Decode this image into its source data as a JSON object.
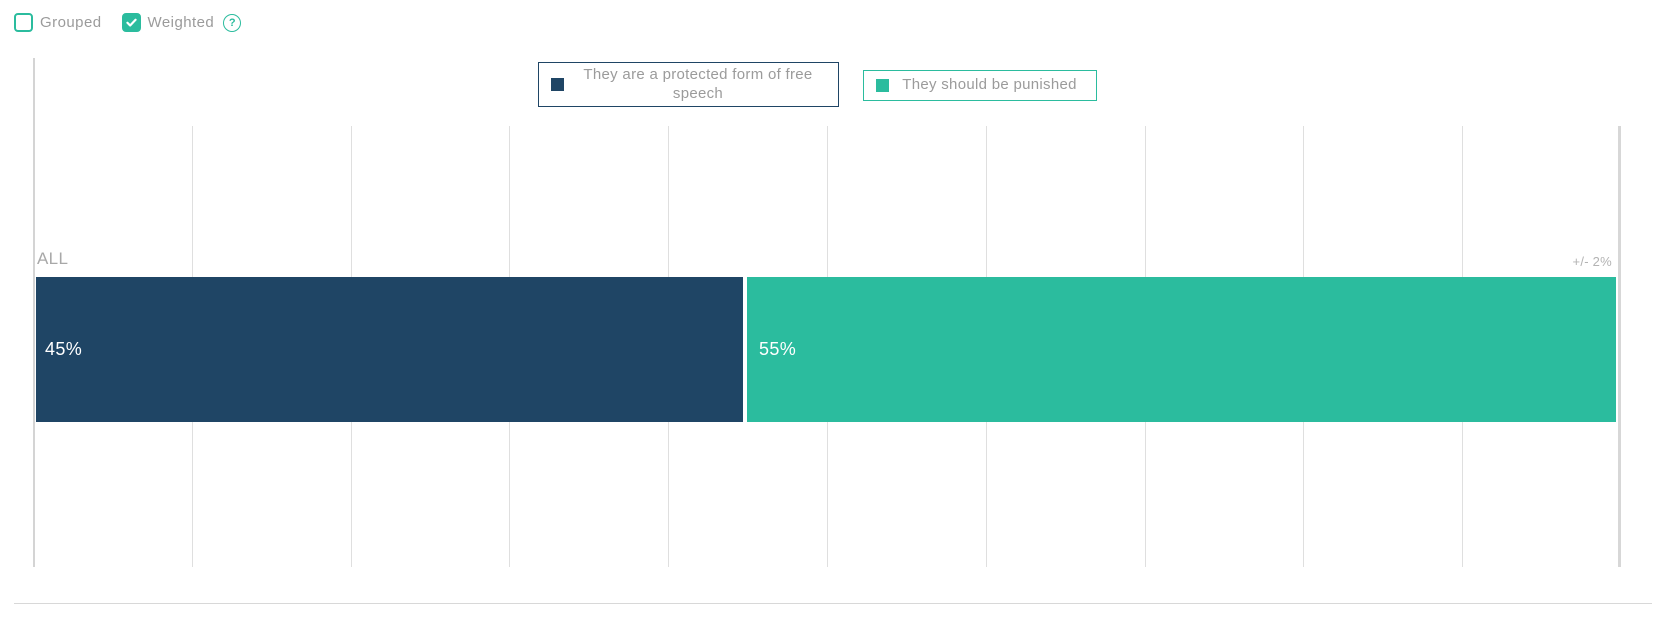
{
  "controls": {
    "grouped": {
      "label": "Grouped",
      "checked": false
    },
    "weighted": {
      "label": "Weighted",
      "checked": true
    },
    "help_glyph": "?"
  },
  "legend": [
    {
      "label": "They are a protected form of free speech",
      "color": "#1f4565"
    },
    {
      "label": "They should be punished",
      "color": "#2bbc9e"
    }
  ],
  "chart_data": {
    "type": "bar",
    "variant": "horizontal-stacked",
    "categories": [
      "ALL"
    ],
    "series": [
      {
        "name": "They are a protected form of free speech",
        "color": "#1f4565",
        "values": [
          45
        ],
        "data_label": "45%"
      },
      {
        "name": "They should be punished",
        "color": "#2bbc9e",
        "values": [
          55
        ],
        "data_label": "55%"
      }
    ],
    "row_label": "ALL",
    "margin_of_error": "+/- 2%",
    "xlim": [
      0,
      100
    ],
    "grid": true,
    "gridline_interval_pct": 10,
    "legend_position": "top-center"
  },
  "colors": {
    "accent_teal": "#2bbc9e",
    "navy": "#1f4565",
    "text_gray": "#9b9b9b",
    "gridline": "#dfdfdf",
    "background": "#ffffff"
  }
}
